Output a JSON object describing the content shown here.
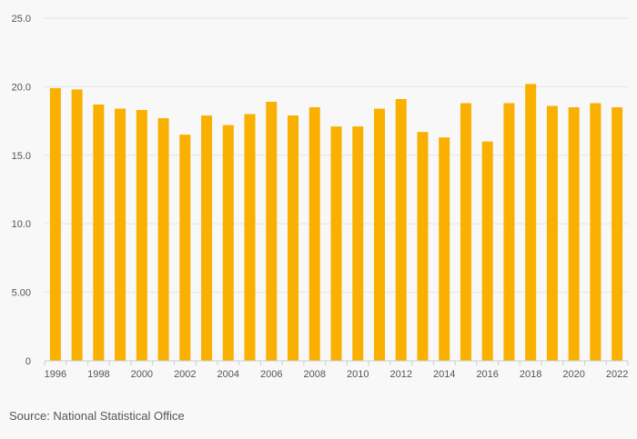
{
  "chart_data": {
    "type": "bar",
    "categories": [
      "1996",
      "1997",
      "1998",
      "1999",
      "2000",
      "2001",
      "2002",
      "2003",
      "2004",
      "2005",
      "2006",
      "2007",
      "2008",
      "2009",
      "2010",
      "2011",
      "2012",
      "2013",
      "2014",
      "2015",
      "2016",
      "2017",
      "2018",
      "2019",
      "2020",
      "2021",
      "2022"
    ],
    "values": [
      19.9,
      19.8,
      18.7,
      18.4,
      18.3,
      17.7,
      16.5,
      17.9,
      17.2,
      18.0,
      18.9,
      17.9,
      18.5,
      17.1,
      17.1,
      18.4,
      19.1,
      16.7,
      16.3,
      18.8,
      16.0,
      18.8,
      20.2,
      18.6,
      18.5,
      18.8,
      18.5
    ],
    "x_tick_labels": [
      "1996",
      "1998",
      "2000",
      "2002",
      "2004",
      "2006",
      "2008",
      "2010",
      "2012",
      "2014",
      "2016",
      "2018",
      "2020",
      "2022"
    ],
    "y_ticks": [
      {
        "value": 0,
        "label": "0"
      },
      {
        "value": 5,
        "label": "5.00"
      },
      {
        "value": 10,
        "label": "10.0"
      },
      {
        "value": 15,
        "label": "15.0"
      },
      {
        "value": 20,
        "label": "20.0"
      },
      {
        "value": 25,
        "label": "25.0"
      }
    ],
    "ylim": [
      0,
      25
    ],
    "grid": true,
    "bar_color": "#f9b000",
    "title": "",
    "xlabel": "",
    "ylabel": ""
  },
  "footer": {
    "source": "Source: National Statistical Office"
  }
}
